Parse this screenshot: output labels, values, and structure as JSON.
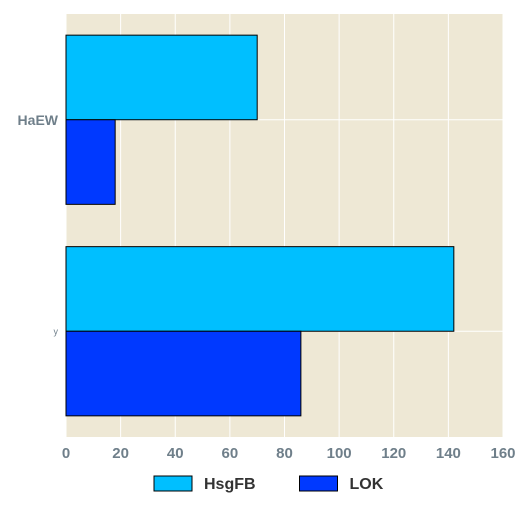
{
  "chart_data": {
    "type": "bar",
    "orientation": "horizontal",
    "categories": [
      "HaEW",
      "y"
    ],
    "series": [
      {
        "name": "HsgFB",
        "values": [
          70,
          142
        ],
        "color": "#00BFFF"
      },
      {
        "name": "LOK",
        "values": [
          18,
          86
        ],
        "color": "#0039FF"
      }
    ],
    "xlim": [
      0,
      160
    ],
    "x_ticks": [
      0,
      20,
      40,
      60,
      80,
      100,
      120,
      140,
      160
    ],
    "grid": true,
    "legend_position": "bottom",
    "plot_background": "#EEE8D5"
  }
}
